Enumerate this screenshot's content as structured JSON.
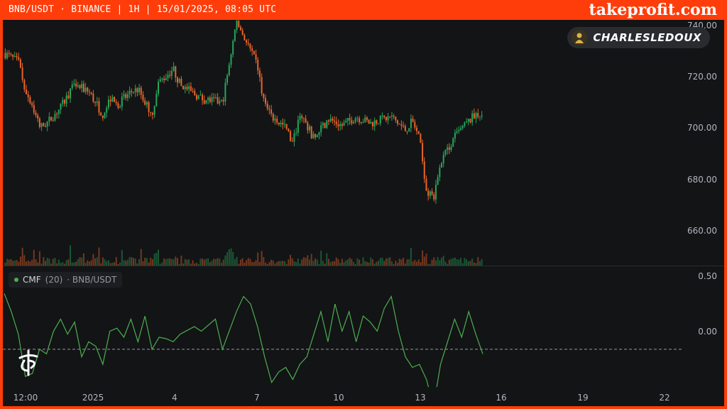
{
  "header": {
    "title": "BNB/USDT · BINANCE | 1H | 15/01/2025, 08:05 UTC",
    "brand": "takeprofit.com"
  },
  "badge": {
    "name": "CHARLESLEDOUX",
    "avatar_icon": "trader-avatar-icon"
  },
  "main_chart": {
    "y_axis": [
      "740.00",
      "720.00",
      "700.00",
      "680.00",
      "660.00"
    ]
  },
  "indicator": {
    "name": "CMF",
    "params": "(20)",
    "symbol": "· BNB/USDT",
    "y_axis": [
      "0.50",
      "0.00"
    ]
  },
  "x_axis": [
    "12:00",
    "2025",
    "4",
    "7",
    "10",
    "13",
    "16",
    "19",
    "22"
  ],
  "colors": {
    "up": "#26a65b",
    "down": "#e8642a",
    "cmf_line": "#4caf50",
    "zero_line": "#9598a1",
    "accent_frame": "#ff3d0a"
  },
  "chart_data": [
    {
      "type": "candlestick",
      "ylim": [
        650,
        742
      ],
      "close_path": [
        [
          0,
          728
        ],
        [
          2,
          724
        ],
        [
          3,
          712
        ],
        [
          4,
          705
        ],
        [
          5,
          695
        ],
        [
          6,
          697
        ],
        [
          8,
          704
        ],
        [
          10,
          714
        ],
        [
          12,
          711
        ],
        [
          14,
          701
        ],
        [
          15,
          708
        ],
        [
          16,
          705
        ],
        [
          18,
          711
        ],
        [
          19,
          712
        ],
        [
          21,
          701
        ],
        [
          22,
          715
        ],
        [
          24,
          721
        ],
        [
          25,
          714
        ],
        [
          26,
          712
        ],
        [
          28,
          708
        ],
        [
          31,
          706
        ],
        [
          33,
          742
        ],
        [
          35,
          729
        ],
        [
          36,
          722
        ],
        [
          37,
          705
        ],
        [
          38,
          700
        ],
        [
          40,
          695
        ],
        [
          41,
          688
        ],
        [
          42,
          702
        ],
        [
          44,
          690
        ],
        [
          46,
          699
        ],
        [
          48,
          696
        ],
        [
          50,
          700
        ],
        [
          52,
          697
        ],
        [
          55,
          700
        ],
        [
          57,
          694
        ],
        [
          58,
          698
        ],
        [
          59,
          690
        ],
        [
          60,
          668
        ],
        [
          61,
          663
        ],
        [
          62,
          680
        ],
        [
          64,
          691
        ],
        [
          66,
          698
        ],
        [
          67,
          701
        ]
      ]
    },
    {
      "type": "line",
      "title": "CMF (20)",
      "ylim": [
        -0.25,
        0.55
      ],
      "points": [
        [
          0,
          0.37
        ],
        [
          1,
          0.25
        ],
        [
          2,
          0.1
        ],
        [
          3,
          -0.18
        ],
        [
          4,
          -0.16
        ],
        [
          5,
          0.0
        ],
        [
          6,
          -0.03
        ],
        [
          7,
          0.12
        ],
        [
          8,
          0.2
        ],
        [
          9,
          0.1
        ],
        [
          10,
          0.18
        ],
        [
          11,
          -0.05
        ],
        [
          12,
          0.05
        ],
        [
          13,
          0.02
        ],
        [
          14,
          -0.1
        ],
        [
          15,
          0.12
        ],
        [
          16,
          0.14
        ],
        [
          17,
          0.08
        ],
        [
          18,
          0.2
        ],
        [
          19,
          0.05
        ],
        [
          20,
          0.22
        ],
        [
          21,
          0.0
        ],
        [
          22,
          0.08
        ],
        [
          23,
          0.07
        ],
        [
          24,
          0.05
        ],
        [
          25,
          0.1
        ],
        [
          27,
          0.15
        ],
        [
          28,
          0.12
        ],
        [
          30,
          0.2
        ],
        [
          31,
          0.0
        ],
        [
          33,
          0.25
        ],
        [
          34,
          0.35
        ],
        [
          35,
          0.3
        ],
        [
          36,
          0.15
        ],
        [
          37,
          -0.05
        ],
        [
          38,
          -0.22
        ],
        [
          39,
          -0.15
        ],
        [
          40,
          -0.12
        ],
        [
          41,
          -0.2
        ],
        [
          42,
          -0.1
        ],
        [
          43,
          -0.05
        ],
        [
          44,
          0.1
        ],
        [
          45,
          0.25
        ],
        [
          46,
          0.05
        ],
        [
          47,
          0.3
        ],
        [
          48,
          0.12
        ],
        [
          49,
          0.25
        ],
        [
          50,
          0.05
        ],
        [
          51,
          0.22
        ],
        [
          52,
          0.18
        ],
        [
          53,
          0.12
        ],
        [
          54,
          0.27
        ],
        [
          55,
          0.35
        ],
        [
          56,
          0.12
        ],
        [
          57,
          -0.05
        ],
        [
          58,
          -0.12
        ],
        [
          59,
          -0.1
        ],
        [
          60,
          -0.2
        ],
        [
          61,
          -0.38
        ],
        [
          62,
          -0.1
        ],
        [
          63,
          0.05
        ],
        [
          64,
          0.2
        ],
        [
          65,
          0.08
        ],
        [
          66,
          0.25
        ],
        [
          67,
          0.1
        ],
        [
          68,
          -0.03
        ]
      ]
    }
  ]
}
